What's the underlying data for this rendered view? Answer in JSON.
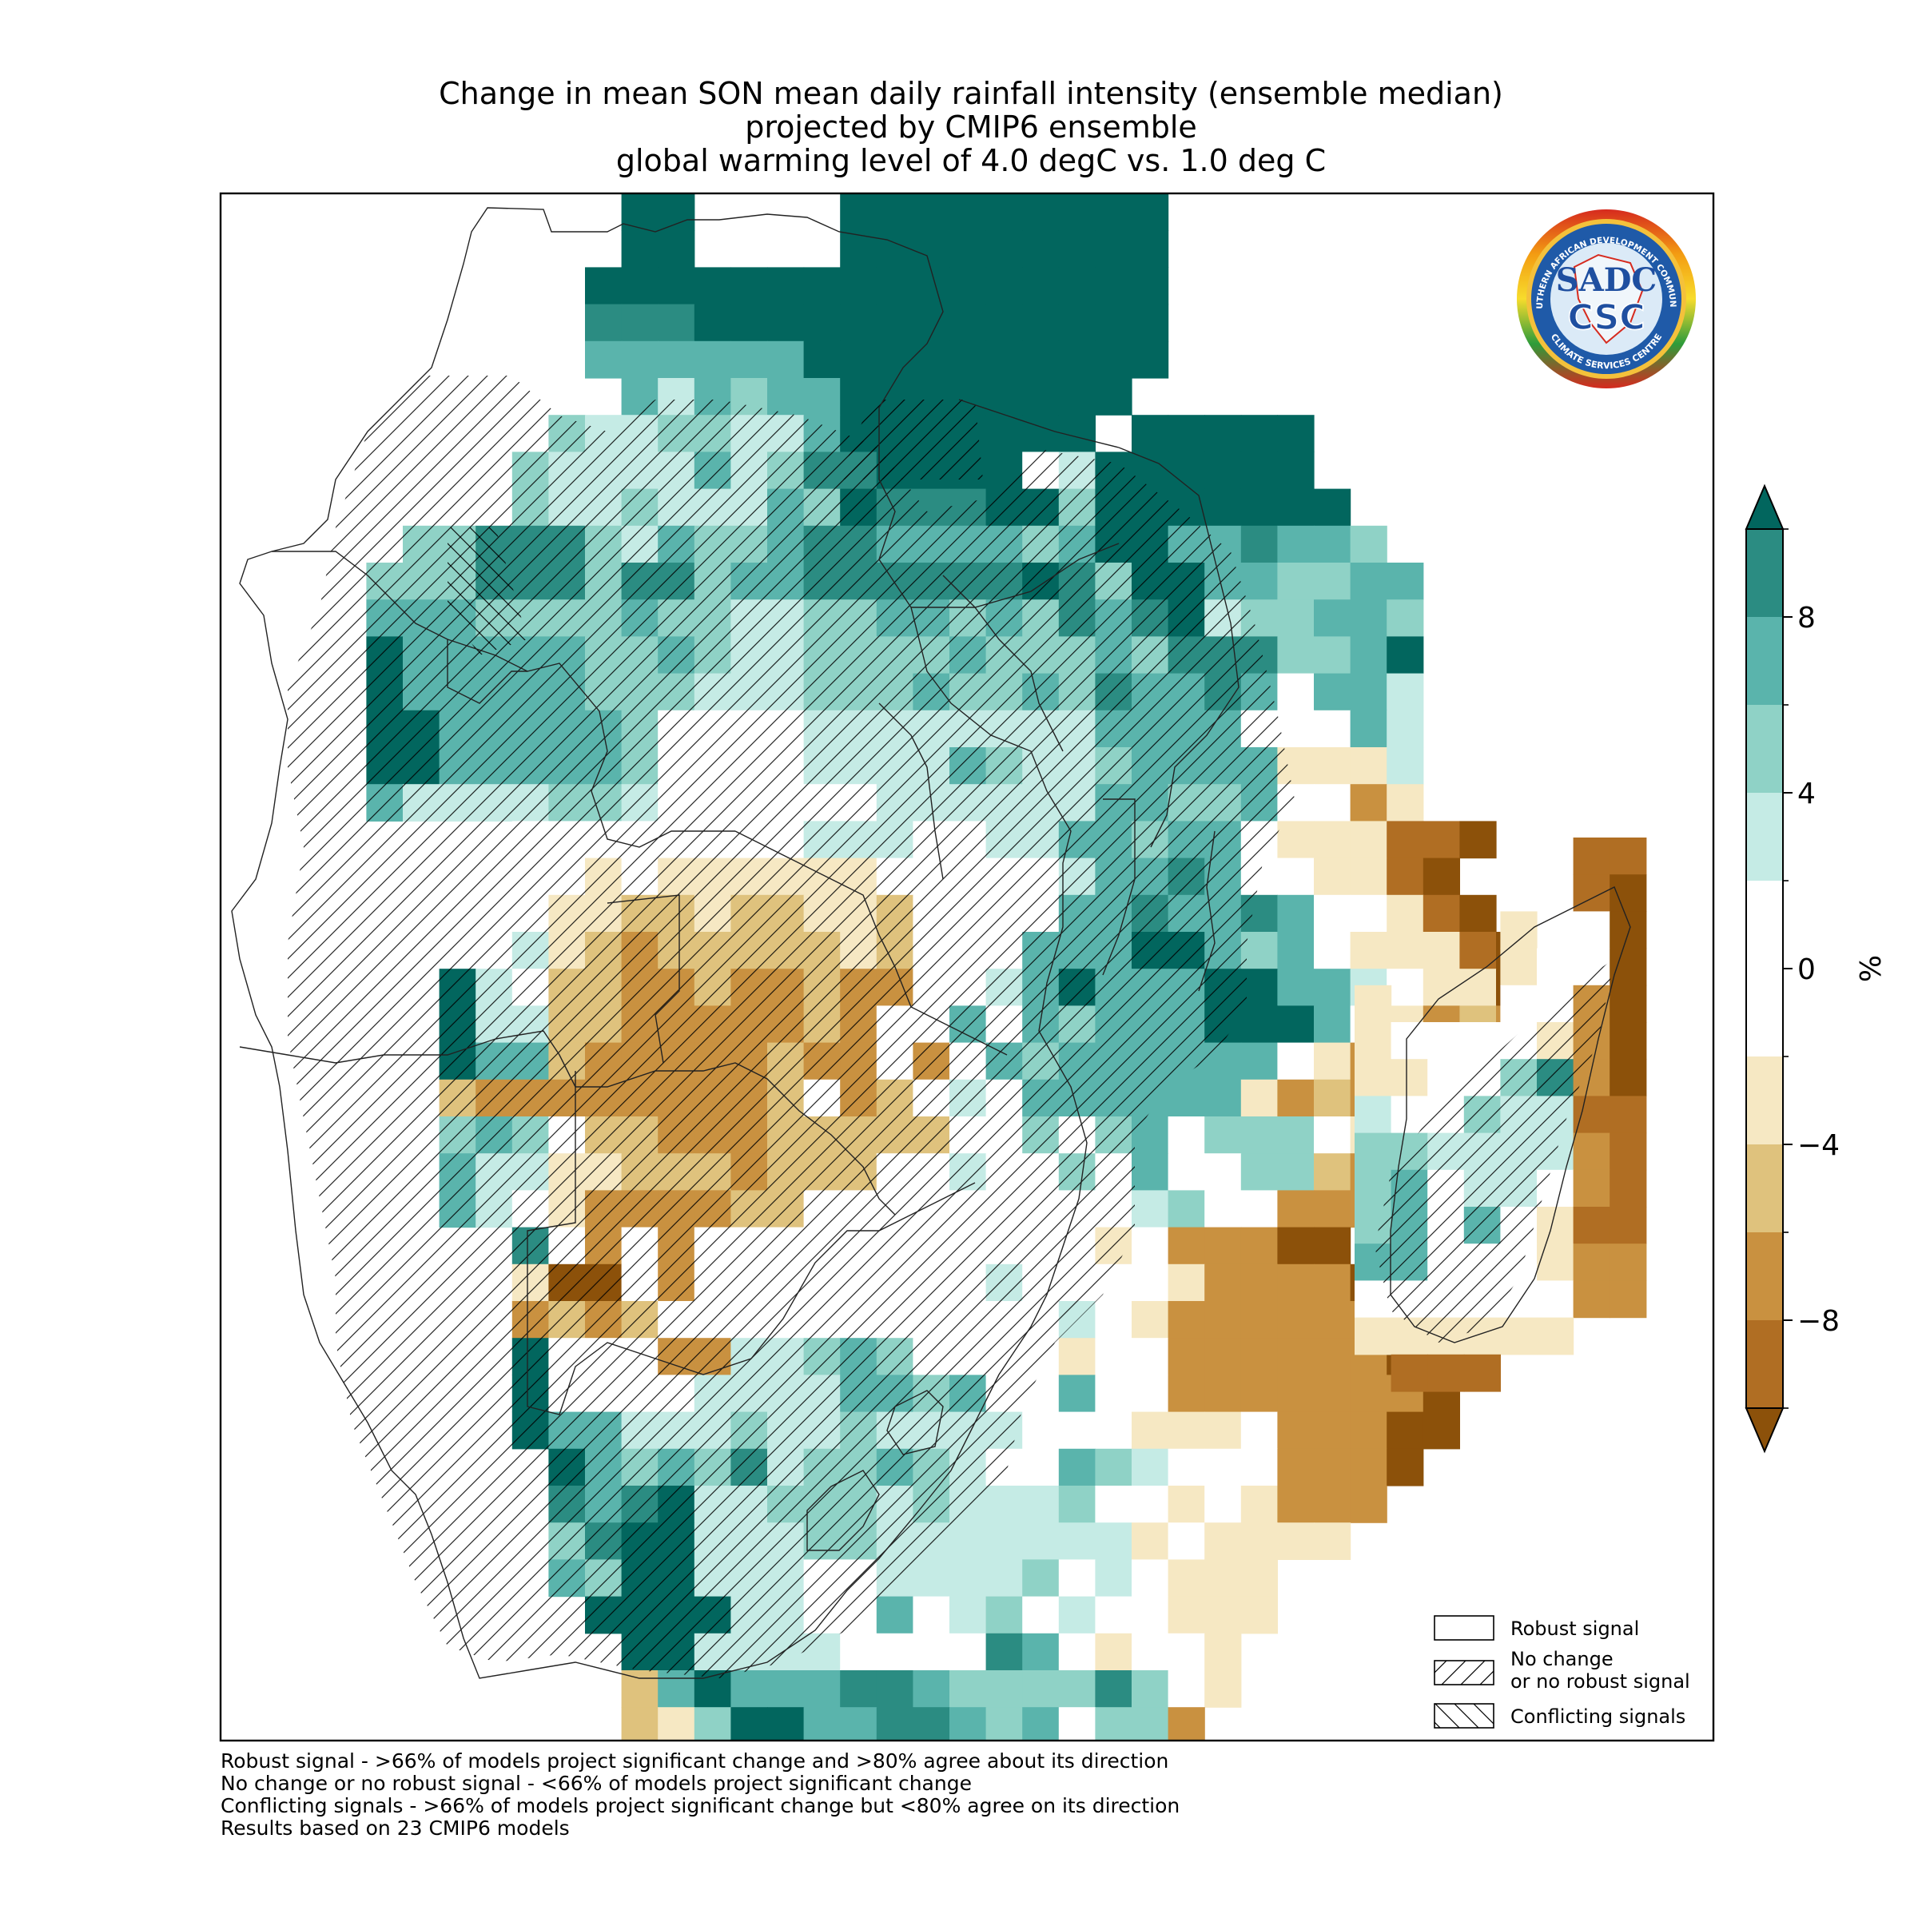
{
  "title": {
    "line1": "Change in mean SON mean daily rainfall intensity (ensemble median)",
    "line2": "projected by CMIP6 ensemble",
    "line3": "global warming level of 4.0 degC vs. 1.0 deg C"
  },
  "logo": {
    "top_text": "SOUTHERN AFRICAN DEVELOPMENT COMMUNITY",
    "bottom_text": "CLIMATE SERVICES CENTRE",
    "sadc": "SADC",
    "csc": "CSC"
  },
  "colorbar": {
    "unit": "%",
    "ticks": [
      "8",
      "4",
      "0",
      "−4",
      "−8"
    ],
    "levels": [
      10,
      8,
      6,
      4,
      2,
      -2,
      -4,
      -6,
      -8,
      -10
    ],
    "colors": [
      "#02665e",
      "#2b8c82",
      "#5ab4ac",
      "#8fd2c6",
      "#c5ebe5",
      "#ffffff",
      "#f6e8c3",
      "#dfc27d",
      "#c99140",
      "#b06e23",
      "#8c510a"
    ],
    "extend": "both"
  },
  "legend": {
    "items": [
      {
        "label": "Robust signal"
      },
      {
        "label": "No change",
        "label2": "or no robust signal"
      },
      {
        "label": "Conflicting signals"
      }
    ]
  },
  "footnotes": [
    "Robust signal - >66% of models project significant change and >80% agree about its direction",
    "No change or no robust signal - <66% of models project significant change",
    "Conflicting signals - >66% of models project significant change but <80% agree on its direction",
    "Results based on 23 CMIP6 models"
  ],
  "map": {
    "type": "gridded-map",
    "region": "Southern Africa and Madagascar",
    "color_key": {
      "a": "#02665e",
      "b": "#2b8c82",
      "c": "#5ab4ac",
      "d": "#8fd2c6",
      "e": "#c5ebe5",
      "w": "#ffffff",
      "f": "#f6e8c3",
      "g": "#dfc27d",
      "h": "#c99140",
      "i": "#b06e23",
      "j": "#8c510a"
    },
    "grid_origin_row": 0,
    "grid": [
      "...........aa....aaaaaaaaa.......",
      "...........aa....aaaaaaaaa.......",
      "..........aaaaaaaaaaaaaaaa.......",
      "..........bbbaaaaaaaaaaaaa.......",
      "..........ccccccaaaaaaaaaa.......",
      "...........cecdccaaaaaaaa........",
      ".........deeddeecaaaaaaa.aaaaa...",
      "........deeeecedbbaaaaweaaaaaa...",
      "........deedeeecdabbbaadaaaaaaa..",
      ".....ddbbbdecddcbbccccdcaaccbccd.",
      "....dddbbbdbbdccbbbbbbabdaaccddcc",
      "....cccddddcddeeddccdcdbcbaeddccd",
      "....acccccddcdeeddddcdddcdbbbddca",
      "....acccccdddeeedddcddcdbccbcwcce",
      "....aacccccdwwwweeeeeeeeccccwwwce",
      "....aacccccdwwwweeeecdeedccccfffe",
      "....ceeeeddewwwwwweeeeeeccddcwwhf",
      "........wwwwwwwweeewweeccdccwfffiij",
      "........wwfwffffffwwwwweccbcwwffij",
      "........wffggfggffgwwwwccbccbcwwfij",
      "......wwefghgggggfgwwwcccaacdcwfffij",
      "......aewgghhghhghhwwecacccaaccewffj",
      "......aeegghhhhhghwwcwcdcccaaacwfhghj",
      "......accghhhhhghhwhwcdccccccwfhhhhj",
      "......ghhhhhhhhgwhgwewccccccfhghgj",
      "......dcdwgghhhgggggwwdwdcwdddwfhhij",
      "......ceeffggghgggwwewwdwcwwddghjj",
      "......cewfhhhhggwwwwwwwwwedwwhhhjj",
      "........bwhwhwwwwwwwwwwwfwhhhjj",
      "........fjjwhwwwwwwwwewwwwfhhhhjh",
      "........hghgwwwwwwwwwwwewfhhhhhhj",
      "........awwwhheedcdwwwwfwwhhhhhhj",
      "........awwwweeeeccdcwwcwwhhhhhhhj",
      "........acceeedeedeeeewwwfffwhhhjj",
      ".........acdcdbeddcdewwcdewwwhhhj",
      ".........bcbaeedddedeeedwwfwfhhh",
      ".........dbaaeeeddeeeeeeefwffff",
      ".........cdaaeeewweeeedwewfff",
      "..........aaaaeewwcwedwewwfff",
      "...........aaeeeewwwwbcwfwwf",
      "...........gcacccbbcddddbdwf",
      "...........gfdaaccbbcdcwddh",
      "...........ffdccceccccwwfff",
      "............hfwwcwfhfffffff",
      "............hhgghhhgggggg",
      "............ghhhhhhhhghhh",
      "............ihhhhhhhhh",
      ".............ii"
    ],
    "grid_row_offsets": [
      0,
      0,
      0,
      0,
      0,
      0,
      0,
      0,
      0,
      0,
      0,
      0,
      0,
      0,
      0,
      0,
      0,
      0,
      0,
      0,
      0,
      0,
      0,
      0,
      0,
      0,
      0,
      0,
      0,
      0,
      0,
      0,
      0,
      0,
      0,
      0,
      0,
      0,
      0,
      0,
      0,
      0,
      0,
      0,
      0,
      0,
      0,
      0
    ],
    "madagascar_grid": [
      "......ii",
      "......ij",
      "....f.wj",
      "....fwwj",
      "f...wwhj",
      "fwwwwfhj",
      "ffwwdbhj",
      "ewwdeeii",
      "ddeeeehi",
      "dcweewhi",
      "dcwcwfii",
      "ccwwwfhh",
      "wwwwwwhh",
      "ffffff..",
      ".iii....."
    ]
  }
}
